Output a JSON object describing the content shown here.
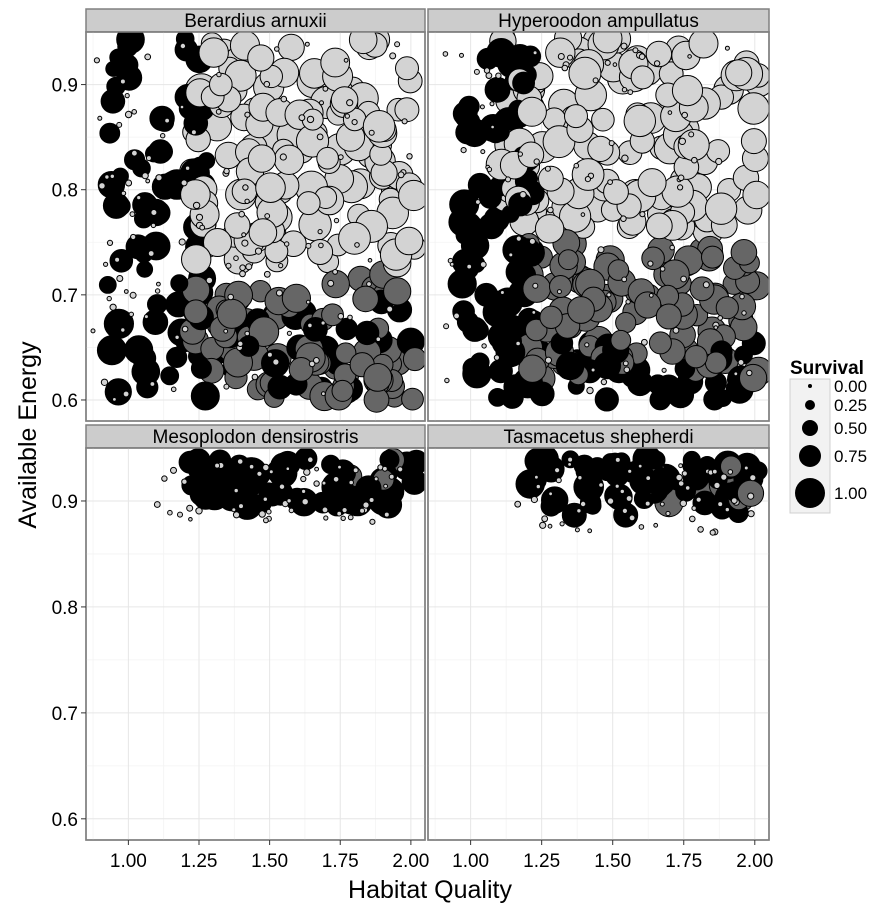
{
  "chart_data": {
    "type": "scatter",
    "xlabel": "Habitat Quality",
    "ylabel": "Available Energy",
    "xlim": [
      0.85,
      2.05
    ],
    "ylim": [
      0.58,
      0.95
    ],
    "xticks": [
      "1.00",
      "1.25",
      "1.50",
      "1.75",
      "2.00"
    ],
    "yticks": [
      "0.6",
      "0.7",
      "0.8",
      "0.9"
    ],
    "grid": true,
    "legend": {
      "title": "Survival",
      "position": "right",
      "entries": [
        "0.00",
        "0.25",
        "0.50",
        "0.75",
        "1.00"
      ]
    },
    "fill_colors": {
      "black": "#000000",
      "dark_gray": "#666666",
      "light_gray": "#d3d3d3"
    },
    "panels": [
      {
        "title": "Berardius arnuxii",
        "clusters": [
          {
            "x": [
              1.22,
              2.02
            ],
            "y": [
              0.73,
              0.945
            ],
            "survival": [
              0.6,
              1.0
            ],
            "color": "light_gray",
            "n": 140
          },
          {
            "x": [
              1.22,
              2.02
            ],
            "y": [
              0.6,
              0.72
            ],
            "survival": [
              0.55,
              0.9
            ],
            "color": "dark_gray",
            "n": 80
          },
          {
            "x": [
              0.92,
              1.28
            ],
            "y": [
              0.6,
              0.945
            ],
            "survival": [
              0.4,
              0.9
            ],
            "color": "black",
            "n": 70
          },
          {
            "x": [
              1.3,
              2.0
            ],
            "y": [
              0.6,
              0.7
            ],
            "survival": [
              0.5,
              0.85
            ],
            "color": "black",
            "n": 30
          },
          {
            "x": [
              0.86,
              2.0
            ],
            "y": [
              0.6,
              0.94
            ],
            "survival": [
              0.0,
              0.1
            ],
            "color": "light_gray",
            "n": 130
          }
        ]
      },
      {
        "title": "Hyperoodon ampullatus",
        "clusters": [
          {
            "x": [
              1.1,
              2.02
            ],
            "y": [
              0.76,
              0.945
            ],
            "survival": [
              0.65,
              1.0
            ],
            "color": "light_gray",
            "n": 140
          },
          {
            "x": [
              1.2,
              2.02
            ],
            "y": [
              0.62,
              0.75
            ],
            "survival": [
              0.55,
              0.9
            ],
            "color": "dark_gray",
            "n": 110
          },
          {
            "x": [
              0.97,
              1.22
            ],
            "y": [
              0.6,
              0.945
            ],
            "survival": [
              0.45,
              0.9
            ],
            "color": "black",
            "n": 90
          },
          {
            "x": [
              1.2,
              2.0
            ],
            "y": [
              0.6,
              0.66
            ],
            "survival": [
              0.4,
              0.85
            ],
            "color": "black",
            "n": 40
          },
          {
            "x": [
              0.9,
              2.0
            ],
            "y": [
              0.6,
              0.94
            ],
            "survival": [
              0.0,
              0.1
            ],
            "color": "light_gray",
            "n": 100
          }
        ]
      },
      {
        "title": "Mesoplodon densirostris",
        "clusters": [
          {
            "x": [
              1.2,
              2.02
            ],
            "y": [
              0.895,
              0.94
            ],
            "survival": [
              0.5,
              0.9
            ],
            "color": "black",
            "n": 60
          },
          {
            "x": [
              1.75,
              1.95
            ],
            "y": [
              0.915,
              0.94
            ],
            "survival": [
              0.6,
              0.8
            ],
            "color": "dark_gray",
            "n": 3
          },
          {
            "x": [
              1.1,
              2.0
            ],
            "y": [
              0.88,
              0.94
            ],
            "survival": [
              0.0,
              0.1
            ],
            "color": "light_gray",
            "n": 60
          }
        ]
      },
      {
        "title": "Tasmacetus shepherdi",
        "clusters": [
          {
            "x": [
              1.2,
              2.02
            ],
            "y": [
              0.885,
              0.94
            ],
            "survival": [
              0.45,
              0.9
            ],
            "color": "black",
            "n": 55
          },
          {
            "x": [
              1.6,
              2.02
            ],
            "y": [
              0.895,
              0.935
            ],
            "survival": [
              0.6,
              0.85
            ],
            "color": "dark_gray",
            "n": 10
          },
          {
            "x": [
              1.15,
              2.0
            ],
            "y": [
              0.87,
              0.94
            ],
            "survival": [
              0.0,
              0.1
            ],
            "color": "light_gray",
            "n": 60
          }
        ]
      }
    ]
  }
}
